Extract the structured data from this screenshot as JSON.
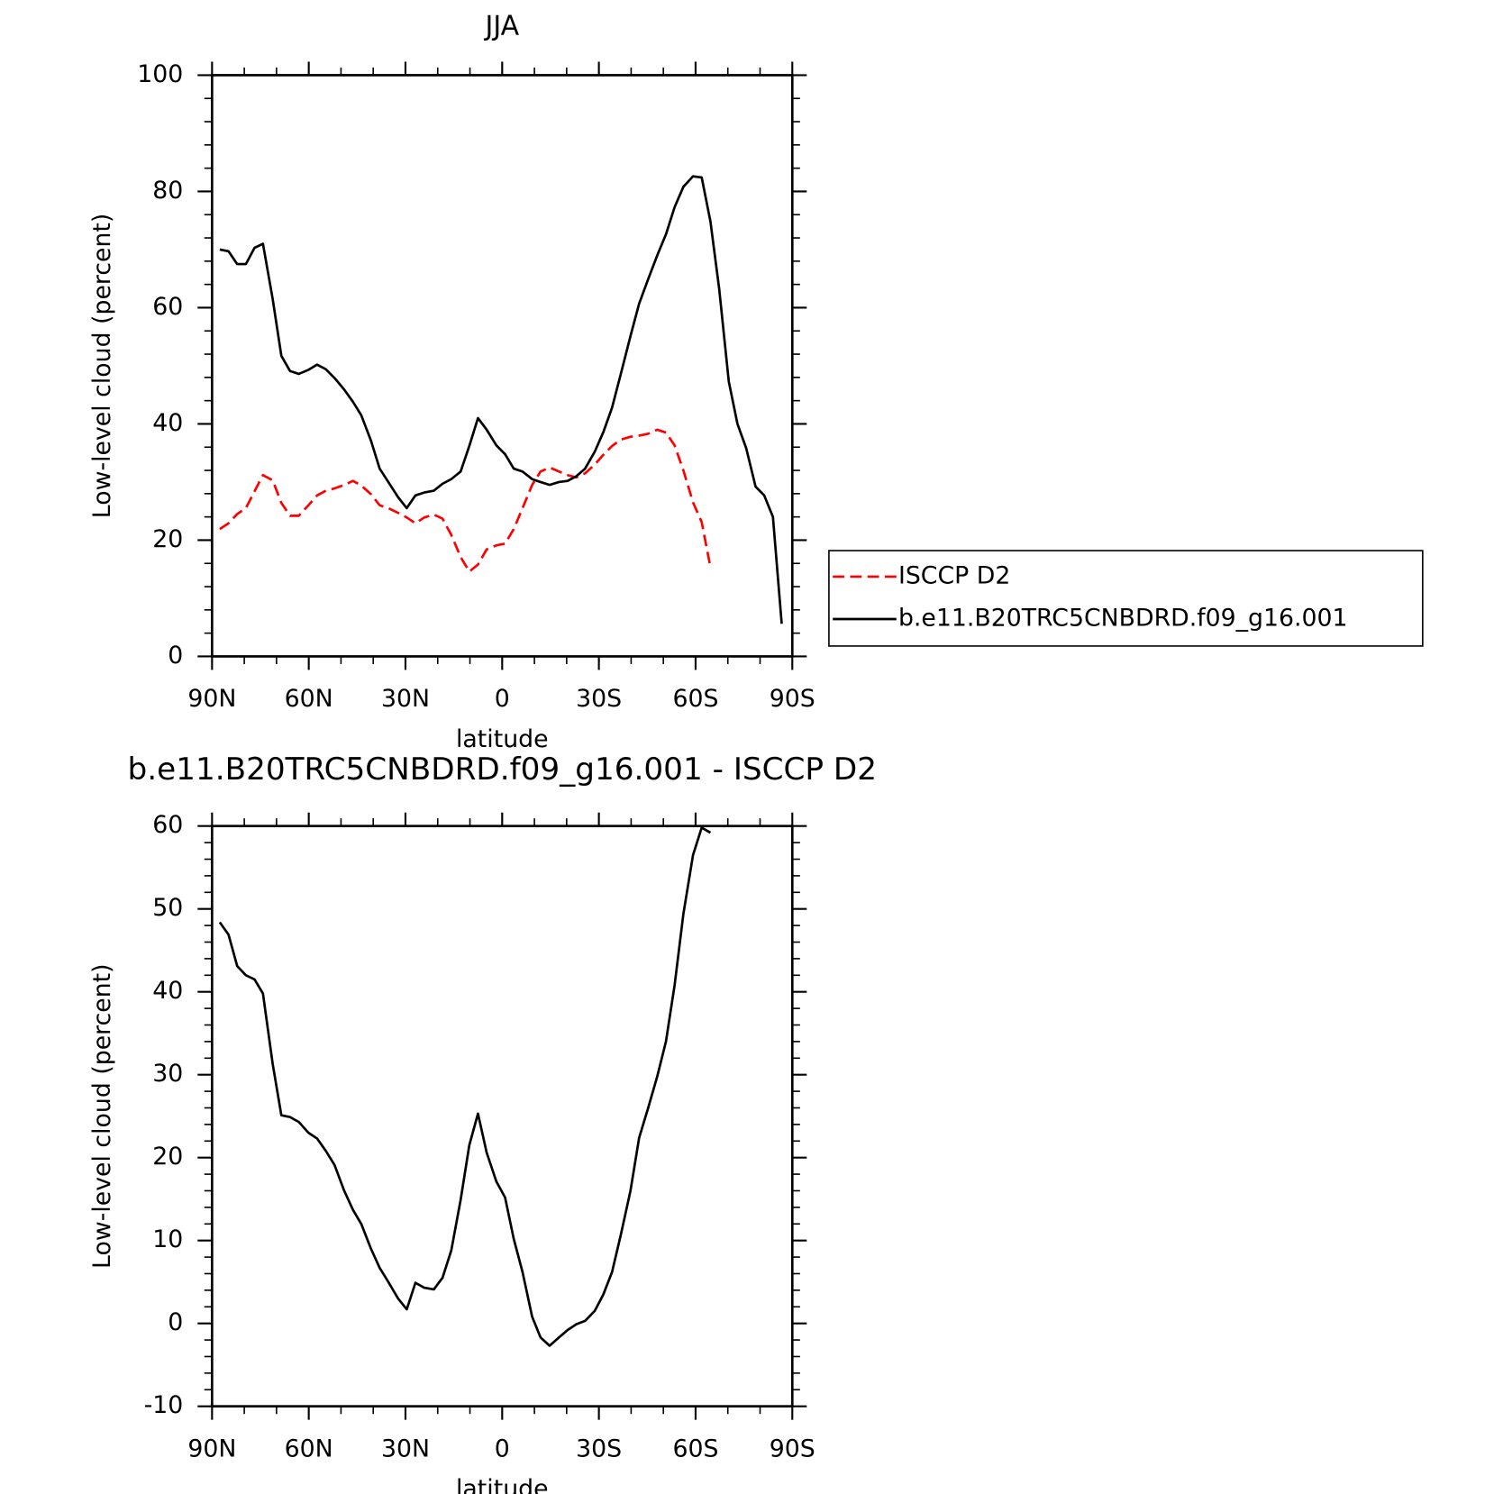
{
  "chart_data": [
    {
      "type": "line",
      "title": "JJA",
      "xlabel": "latitude",
      "ylabel": "Low-level cloud (percent)",
      "x": [
        87.6,
        84.9,
        82.2,
        79.5,
        76.8,
        74.2,
        71.2,
        68.5,
        65.8,
        63.1,
        60.1,
        57.4,
        54.7,
        52.0,
        49.0,
        46.3,
        43.7,
        40.7,
        38.0,
        35.3,
        32.3,
        29.6,
        26.9,
        24.2,
        21.2,
        18.5,
        15.8,
        12.9,
        10.2,
        7.5,
        4.8,
        1.8,
        -0.9,
        -3.6,
        -6.3,
        -9.3,
        -11.9,
        -14.7,
        -17.6,
        -20.3,
        -23.0,
        -25.7,
        -28.7,
        -31.4,
        -34.1,
        -36.8,
        -39.8,
        -42.5,
        -45.2,
        -48.1,
        -50.8,
        -53.5,
        -56.2,
        -59.2,
        -61.9,
        -64.6,
        -67.3,
        -70.3,
        -73.0,
        -75.7,
        -78.6,
        -81.3,
        -84.0,
        -86.7
      ],
      "series": [
        {
          "name": "ISCCP D2",
          "color": "#ff0000",
          "dashed": true,
          "values": [
            21.9,
            22.9,
            24.5,
            25.5,
            28.4,
            31.2,
            30.3,
            26.4,
            24.2,
            24.2,
            26.0,
            27.7,
            28.5,
            28.9,
            29.5,
            30.2,
            29.4,
            27.9,
            26.0,
            25.5,
            24.7,
            23.9,
            22.9,
            23.9,
            24.4,
            23.7,
            20.9,
            17.1,
            14.6,
            15.8,
            18.4,
            19.1,
            19.4,
            21.9,
            25.5,
            29.5,
            31.8,
            32.5,
            31.8,
            31.2,
            30.8,
            31.5,
            33.0,
            34.7,
            36.2,
            37.3,
            37.8,
            38.0,
            38.3,
            39.0,
            38.5,
            36.3,
            32.0,
            26.5,
            23.1,
            15.3,
            null,
            null,
            null,
            null,
            null,
            null,
            null,
            null
          ]
        },
        {
          "name": "b.e11.B20TRC5CNBDRD.f09_g16.001",
          "color": "#000000",
          "dashed": false,
          "values": [
            70.0,
            69.7,
            67.5,
            67.5,
            70.3,
            71.0,
            61.5,
            51.7,
            49.1,
            48.6,
            49.3,
            50.2,
            49.4,
            47.9,
            45.9,
            43.8,
            41.5,
            37.1,
            32.3,
            30.0,
            27.4,
            25.5,
            27.7,
            28.2,
            28.5,
            29.7,
            30.5,
            31.8,
            36.2,
            41.0,
            39.0,
            36.3,
            34.8,
            32.3,
            31.8,
            30.5,
            30.0,
            29.5,
            30.0,
            30.2,
            31.0,
            32.3,
            35.2,
            38.6,
            42.8,
            48.6,
            55.1,
            60.7,
            64.8,
            69.0,
            72.6,
            77.3,
            80.8,
            82.6,
            82.4,
            74.8,
            63.3,
            47.3,
            40.0,
            35.8,
            29.2,
            27.7,
            24.0,
            5.6
          ]
        }
      ],
      "xlim": [
        90,
        -90
      ],
      "xticks": [
        {
          "value": 90,
          "label": "90N"
        },
        {
          "value": 60,
          "label": "60N"
        },
        {
          "value": 30,
          "label": "30N"
        },
        0,
        {
          "value": -30,
          "label": "30S"
        },
        {
          "value": -60,
          "label": "60S"
        },
        {
          "value": -90,
          "label": "90S"
        }
      ],
      "xminorticks": [
        80,
        70,
        50,
        40,
        20,
        10,
        -10,
        -20,
        -40,
        -50,
        -70,
        -80
      ],
      "ylim": [
        0,
        100
      ],
      "yticks": [
        0,
        20,
        40,
        60,
        80,
        100
      ],
      "yminorticks": [
        4,
        8,
        12,
        16,
        24,
        28,
        32,
        36,
        44,
        48,
        52,
        56,
        64,
        68,
        72,
        76,
        84,
        88,
        92,
        96
      ],
      "legend": "right"
    },
    {
      "type": "line",
      "title": "b.e11.B20TRC5CNBDRD.f09_g16.001 - ISCCP D2",
      "xlabel": "latitude",
      "ylabel": "Low-level cloud (percent)",
      "x": [
        87.6,
        84.9,
        82.2,
        79.5,
        76.8,
        74.2,
        71.2,
        68.5,
        65.8,
        63.1,
        60.1,
        57.4,
        54.7,
        52.0,
        49.0,
        46.3,
        43.7,
        40.7,
        38.0,
        35.3,
        32.3,
        29.6,
        26.9,
        24.2,
        21.2,
        18.5,
        15.8,
        12.9,
        10.2,
        7.5,
        4.8,
        1.8,
        -0.9,
        -3.6,
        -6.3,
        -9.3,
        -11.9,
        -14.7,
        -17.6,
        -20.3,
        -23.0,
        -25.7,
        -28.7,
        -31.4,
        -34.1,
        -36.8,
        -39.8,
        -42.5,
        -45.2,
        -48.1,
        -50.8,
        -53.5,
        -56.2,
        -59.2,
        -61.9,
        -64.6
      ],
      "series": [
        {
          "color": "#000000",
          "dashed": false,
          "values": [
            48.4,
            46.9,
            43.1,
            42.0,
            41.5,
            39.8,
            31.3,
            25.1,
            24.9,
            24.3,
            23.0,
            22.3,
            20.8,
            19.1,
            16.0,
            13.7,
            12.0,
            9.0,
            6.7,
            5.0,
            3.0,
            1.7,
            4.9,
            4.3,
            4.1,
            5.5,
            8.8,
            14.9,
            21.5,
            25.3,
            20.6,
            17.1,
            15.2,
            10.2,
            6.2,
            0.8,
            -1.7,
            -2.7,
            -1.7,
            -0.8,
            -0.1,
            0.3,
            1.5,
            3.5,
            6.2,
            10.7,
            16.0,
            22.4,
            25.9,
            29.8,
            34.0,
            40.8,
            49.4,
            56.5,
            59.8,
            59.2
          ]
        }
      ],
      "xlim": [
        90,
        -90
      ],
      "xticks": [
        {
          "value": 90,
          "label": "90N"
        },
        {
          "value": 60,
          "label": "60N"
        },
        {
          "value": 30,
          "label": "30N"
        },
        0,
        {
          "value": -30,
          "label": "30S"
        },
        {
          "value": -60,
          "label": "60S"
        },
        {
          "value": -90,
          "label": "90S"
        }
      ],
      "xminorticks": [
        80,
        70,
        50,
        40,
        20,
        10,
        -10,
        -20,
        -40,
        -50,
        -70,
        -80
      ],
      "ylim": [
        -10,
        60
      ],
      "yticks": [
        -10,
        0,
        10,
        20,
        30,
        40,
        50,
        60
      ],
      "yminorticks": [
        -8,
        -6,
        -4,
        -2,
        2,
        4,
        6,
        8,
        12,
        14,
        16,
        18,
        22,
        24,
        26,
        28,
        32,
        34,
        36,
        38,
        42,
        44,
        46,
        48,
        52,
        54,
        56,
        58
      ]
    }
  ]
}
